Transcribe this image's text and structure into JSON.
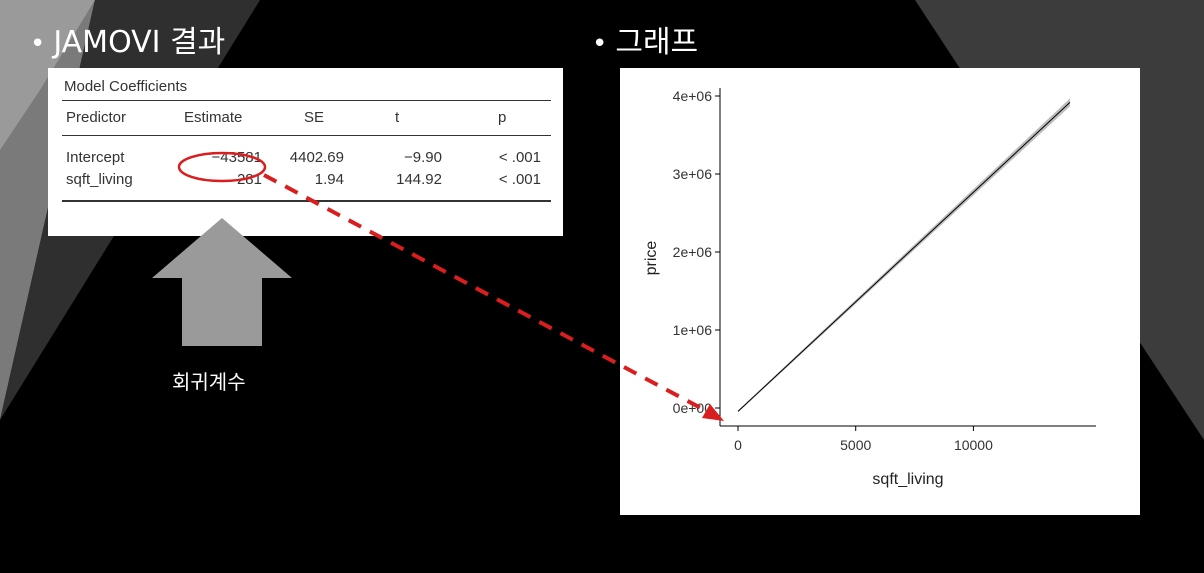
{
  "slide": {
    "left_heading": "JAMOVI 결과",
    "right_heading": "그래프",
    "bullet": "•",
    "arrow_label": "회귀계수",
    "colors": {
      "background": "#000000",
      "panel": "#ffffff",
      "highlight": "#d81e1e",
      "arrow": "#9a9a9a"
    }
  },
  "table": {
    "title": "Model Coefficients",
    "headers": [
      "Predictor",
      "Estimate",
      "SE",
      "t",
      "p"
    ],
    "rows": [
      [
        "Intercept",
        "−43581",
        "4402.69",
        "−9.90",
        "< .001"
      ],
      [
        "sqft_living",
        "281",
        "1.94",
        "144.92",
        "< .001"
      ]
    ]
  },
  "chart_data": {
    "type": "line",
    "title": "",
    "xlabel": "sqft_living",
    "ylabel": "price",
    "xlim": [
      0,
      14400
    ],
    "ylim": [
      -43581,
      4000000
    ],
    "x_ticks": [
      0,
      5000,
      10000
    ],
    "x_tick_labels": [
      "0",
      "5000",
      "10000"
    ],
    "y_ticks": [
      0,
      1000000,
      2000000,
      3000000,
      4000000
    ],
    "y_tick_labels": [
      "0e+00",
      "1e+06",
      "2e+06",
      "3e+06",
      "4e+06"
    ],
    "series": [
      {
        "x": [
          0,
          14100
        ],
        "y": [
          -43581,
          3918519
        ],
        "se_band": true
      }
    ],
    "grid": false,
    "legend": "none"
  }
}
